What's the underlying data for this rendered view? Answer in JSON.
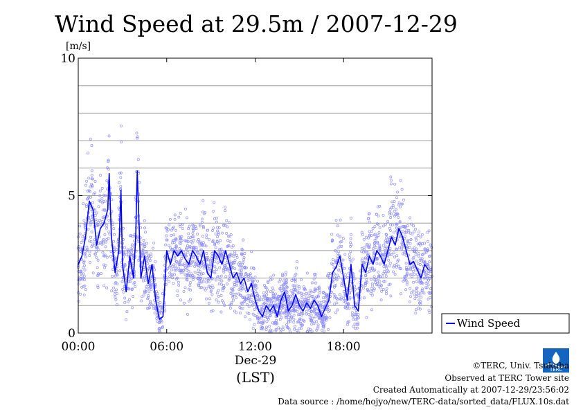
{
  "chart_data": {
    "type": "line",
    "title": "Wind Speed at 29.5m / 2007-12-29",
    "ylabel": "[m/s]",
    "ylim": [
      0,
      10
    ],
    "yticks": [
      {
        "value": 0,
        "label": "0"
      },
      {
        "value": 5,
        "label": "5"
      },
      {
        "value": 10,
        "label": "10"
      }
    ],
    "ygrid": [
      1,
      2,
      3,
      4,
      5,
      6,
      7,
      8,
      9
    ],
    "xlim": [
      0,
      24
    ],
    "xticks": [
      {
        "value": 0,
        "label": "00:00"
      },
      {
        "value": 6,
        "label": "06:00"
      },
      {
        "value": 12,
        "label": "12:00"
      },
      {
        "value": 18,
        "label": "18:00"
      }
    ],
    "date_label": "Dec-29",
    "xlabel": "(LST)",
    "grid": true,
    "legend_position": "right",
    "series": [
      {
        "name": "Wind Speed",
        "color": "#0000ff",
        "scatter_color": "#8c8cff",
        "x": [
          0,
          0.25,
          0.5,
          0.75,
          1.0,
          1.25,
          1.5,
          1.75,
          2.0,
          2.1,
          2.25,
          2.5,
          2.75,
          2.9,
          3.0,
          3.25,
          3.5,
          3.75,
          3.9,
          4.0,
          4.25,
          4.5,
          4.75,
          5.0,
          5.25,
          5.5,
          5.75,
          5.9,
          6.0,
          6.25,
          6.5,
          6.75,
          7.0,
          7.25,
          7.5,
          7.75,
          8.0,
          8.25,
          8.5,
          8.75,
          9.0,
          9.25,
          9.5,
          9.75,
          10.0,
          10.25,
          10.5,
          10.75,
          11.0,
          11.25,
          11.5,
          11.75,
          12.0,
          12.25,
          12.5,
          12.75,
          13.0,
          13.25,
          13.5,
          13.75,
          14.0,
          14.25,
          14.5,
          14.75,
          15.0,
          15.25,
          15.5,
          15.75,
          16.0,
          16.25,
          16.5,
          16.75,
          17.0,
          17.25,
          17.5,
          17.75,
          18.0,
          18.25,
          18.5,
          18.75,
          19.0,
          19.25,
          19.5,
          19.75,
          20.0,
          20.25,
          20.5,
          20.75,
          21.0,
          21.25,
          21.5,
          21.75,
          22.0,
          22.25,
          22.5,
          22.75,
          23.0,
          23.25,
          23.5,
          23.75
        ],
        "values": [
          2.5,
          2.8,
          3.5,
          4.8,
          4.5,
          3.2,
          3.8,
          4.0,
          4.5,
          5.8,
          3.5,
          2.2,
          3.0,
          5.2,
          2.5,
          1.5,
          2.8,
          2.0,
          3.5,
          5.9,
          2.0,
          2.8,
          1.8,
          2.5,
          1.2,
          0.5,
          0.6,
          2.0,
          3.0,
          2.5,
          3.0,
          2.8,
          3.0,
          2.7,
          2.5,
          3.0,
          2.8,
          2.5,
          3.0,
          2.2,
          2.0,
          3.0,
          2.8,
          2.5,
          3.0,
          2.5,
          2.0,
          2.2,
          1.8,
          2.0,
          1.5,
          1.8,
          1.2,
          0.8,
          0.6,
          1.0,
          0.8,
          1.0,
          0.6,
          1.2,
          1.5,
          0.8,
          1.0,
          1.4,
          1.0,
          0.8,
          1.1,
          0.9,
          1.2,
          1.0,
          0.6,
          0.9,
          1.2,
          2.2,
          2.4,
          2.8,
          2.0,
          1.2,
          2.5,
          1.0,
          0.8,
          2.5,
          2.2,
          2.8,
          2.5,
          3.0,
          2.8,
          2.5,
          3.0,
          3.5,
          3.2,
          3.8,
          3.5,
          3.0,
          2.5,
          2.6,
          2.3,
          2.0,
          2.5,
          2.3
        ]
      }
    ]
  },
  "credits": {
    "copyright": "©TERC, Univ. Tsukuba",
    "observed": "Observed at TERC Tower site",
    "created": "Created Automatically at 2007-12-29/23:56:02",
    "source": "Data source : /home/hojyo/new/TERC-data/sorted_data/FLUX.10s.dat",
    "logo_text": "TERC"
  }
}
